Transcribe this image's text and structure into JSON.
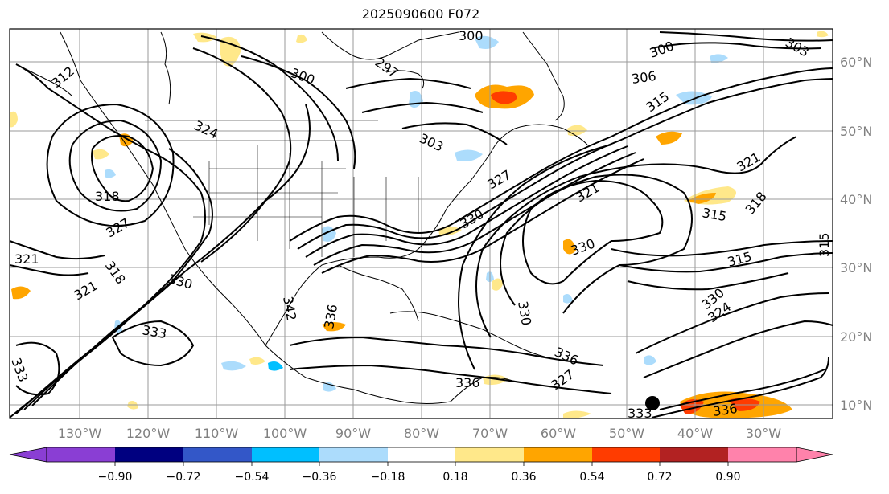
{
  "title": "2025090600 F072",
  "longitude_labels": [
    "130°W",
    "120°W",
    "110°W",
    "100°W",
    "90°W",
    "80°W",
    "70°W",
    "60°W",
    "50°W",
    "40°W",
    "30°W"
  ],
  "latitude_labels": [
    "60°N",
    "50°N",
    "40°N",
    "30°N",
    "20°N",
    "10°N"
  ],
  "colorbar": {
    "tick_labels": [
      "−0.90",
      "−0.72",
      "−0.54",
      "−0.36",
      "−0.18",
      "0.18",
      "0.36",
      "0.54",
      "0.72",
      "0.90"
    ],
    "colors": [
      "#8a3ed4",
      "#000080",
      "#3357c8",
      "#00bfff",
      "#acdcfc",
      "#ffffff",
      "#ffe88a",
      "#ffa500",
      "#ff3c00",
      "#b22222",
      "#ff82ab"
    ]
  },
  "contour_labels": [
    "303",
    "300",
    "300",
    "297",
    "300",
    "306",
    "315",
    "324",
    "303",
    "312",
    "321",
    "318",
    "321",
    "318",
    "327",
    "330",
    "333",
    "336",
    "342",
    "321",
    "330",
    "315",
    "321",
    "318",
    "315",
    "330",
    "336",
    "333",
    "336",
    "327",
    "330",
    "324",
    "333",
    "336",
    "315",
    "330",
    "327"
  ],
  "marker": {
    "type": "filled-circle",
    "color": "#000000"
  }
}
